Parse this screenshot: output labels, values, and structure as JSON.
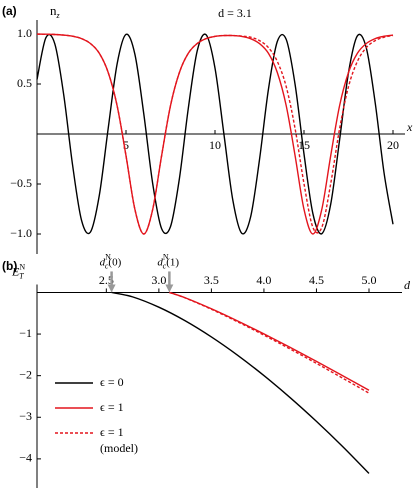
{
  "chart_data": [
    {
      "type": "line",
      "panel_label": "(a)",
      "title": "d = 3.1",
      "ylabel": {
        "base": "n",
        "sub": "z"
      },
      "xlabel": "x",
      "x": [
        0,
        0.5,
        1,
        1.5,
        2,
        2.5,
        3,
        3.5,
        4,
        4.5,
        5,
        5.5,
        6,
        6.5,
        7,
        7.5,
        8,
        8.5,
        9,
        9.5,
        10,
        10.5,
        11,
        11.5,
        12,
        12.5,
        13,
        13.5,
        14,
        14.5,
        15,
        15.5,
        16,
        16.5,
        17,
        17.5,
        18,
        18.5,
        19,
        19.5,
        20
      ],
      "series": [
        {
          "color": "#000000",
          "values": [
            0.545,
            0.963,
            0.902,
            0.393,
            -0.312,
            -0.862,
            -0.981,
            -0.614,
            0.057,
            0.7,
            0.996,
            0.797,
            0.2,
            -0.496,
            -0.946,
            -0.926,
            -0.446,
            0.257,
            0.831,
            0.992,
            0.659,
            0,
            -0.66,
            -0.992,
            -0.83,
            -0.256,
            0.445,
            0.925,
            0.946,
            0.495,
            -0.2,
            -0.797,
            -0.997,
            -0.703,
            -0.058,
            0.614,
            0.982,
            0.861,
            0.312,
            -0.392,
            -0.902
          ]
        },
        {
          "color": "#e3151d",
          "values": [
            0.999,
            0.998,
            0.995,
            0.989,
            0.978,
            0.954,
            0.905,
            0.807,
            0.615,
            0.284,
            -0.217,
            -0.754,
            -1,
            -0.754,
            -0.217,
            0.284,
            0.615,
            0.807,
            0.905,
            0.954,
            0.976,
            0.984,
            0.984,
            0.976,
            0.953,
            0.904,
            0.807,
            0.615,
            0.284,
            -0.217,
            -0.754,
            -1,
            -0.754,
            -0.217,
            0.284,
            0.615,
            0.807,
            0.905,
            0.954,
            0.978,
            0.989
          ]
        },
        {
          "color": "#e3151d",
          "dash": true,
          "values": [
            0.999,
            0.998,
            0.995,
            0.989,
            0.978,
            0.954,
            0.905,
            0.807,
            0.615,
            0.284,
            -0.217,
            -0.754,
            -1,
            -0.754,
            -0.217,
            0.284,
            0.615,
            0.807,
            0.905,
            0.954,
            0.977,
            0.985,
            0.985,
            0.979,
            0.968,
            0.934,
            0.864,
            0.726,
            0.474,
            0.053,
            -0.497,
            -0.934,
            -0.934,
            -0.497,
            0.053,
            0.474,
            0.726,
            0.864,
            0.934,
            0.968,
            0.985
          ]
        }
      ],
      "xlim": [
        0,
        20
      ],
      "ylim": [
        -1.2,
        1.2
      ],
      "xticks": [
        5,
        10,
        15,
        20
      ],
      "yticks": [
        {
          "value": 1,
          "label": "1.0"
        },
        0.5,
        {
          "value": -0.5,
          "label": "−0.5"
        },
        {
          "value": -1,
          "label": "−1.0"
        }
      ]
    },
    {
      "type": "line",
      "panel_label": "(b)",
      "xlabel": "d",
      "ylabel": {
        "base": "E",
        "sup": "N",
        "sub": "T"
      },
      "series": [
        {
          "name": "ϵ = 0",
          "color": "#000000",
          "x": [
            2.55,
            2.75,
            3,
            3.25,
            3.5,
            3.75,
            4,
            4.25,
            4.5,
            4.75,
            5
          ],
          "values": [
            0,
            -0.106,
            -0.354,
            -0.68,
            -1.069,
            -1.51,
            -1.998,
            -2.529,
            -3.099,
            -3.705,
            -4.35
          ]
        },
        {
          "name": "ϵ = 1",
          "color": "#e3151d",
          "x": [
            3.1,
            3.25,
            3.5,
            3.75,
            4,
            4.25,
            4.5,
            4.75,
            5
          ],
          "values": [
            0,
            -0.127,
            -0.392,
            -0.685,
            -0.996,
            -1.32,
            -1.656,
            -2.001,
            -2.35
          ]
        },
        {
          "name": "ϵ = 1",
          "note": "(model)",
          "color": "#e3151d",
          "dash": true,
          "x": [
            3.1,
            3.25,
            3.5,
            3.75,
            4,
            4.25,
            4.5,
            4.75,
            5
          ],
          "values": [
            0,
            -0.131,
            -0.404,
            -0.706,
            -1.026,
            -1.36,
            -1.705,
            -2.061,
            -2.42
          ]
        }
      ],
      "annotations": [
        {
          "base": "d",
          "sub": "c",
          "sup": "N",
          "tail": "(0)",
          "x": 2.55
        },
        {
          "base": "d",
          "sub": "c",
          "sup": "N",
          "tail": "(1)",
          "x": 3.1
        }
      ],
      "legend": "center-left",
      "xlim": [
        1.84,
        5.2
      ],
      "ylim": [
        -4.7,
        0.9
      ],
      "xticks": [
        2.5,
        {
          "value": 3,
          "label": "3.0"
        },
        3.5,
        {
          "value": 4,
          "label": "4.0"
        },
        4.5,
        {
          "value": 5,
          "label": "5.0"
        }
      ],
      "yticks": [
        {
          "value": -1,
          "label": "−1"
        },
        {
          "value": -2,
          "label": "−2"
        },
        {
          "value": -3,
          "label": "−3"
        },
        {
          "value": -4,
          "label": "−4"
        }
      ]
    }
  ]
}
